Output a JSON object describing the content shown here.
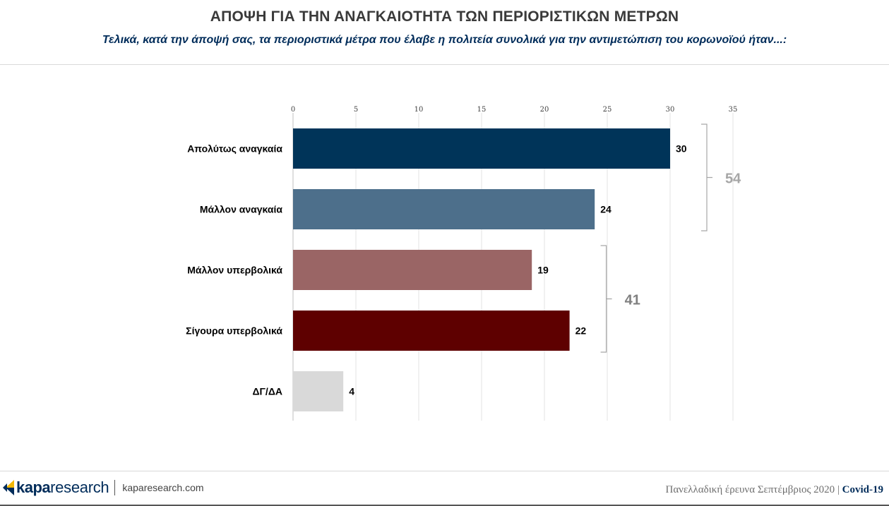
{
  "header": {
    "title": "ΑΠΟΨΗ ΓΙΑ ΤΗΝ ΑΝΑΓΚΑΙΟΤΗΤΑ ΤΩΝ ΠΕΡΙΟΡΙΣΤΙΚΩΝ ΜΕΤΡΩΝ",
    "subtitle": "Τελικά, κατά την άποψή σας, τα περιοριστικά μέτρα που έλαβε η πολιτεία συνολικά για την αντιμετώπιση του κορωνοϊού ήταν...:"
  },
  "chart_data": {
    "type": "bar",
    "orientation": "horizontal",
    "categories": [
      "Απολύτως αναγκαία",
      "Μάλλον αναγκαία",
      "Μάλλον υπερβολικά",
      "Σίγουρα υπερβολικά",
      "ΔΓ/ΔΑ"
    ],
    "values": [
      30,
      24,
      19,
      22,
      4
    ],
    "colors": [
      "#003459",
      "#4d6f8b",
      "#9a6565",
      "#5e0000",
      "#d9d9d9"
    ],
    "xlim": [
      0,
      35
    ],
    "x_ticks": [
      0,
      5,
      10,
      15,
      20,
      25,
      30,
      35
    ],
    "x_axis_position": "top",
    "grid": true,
    "groups": [
      {
        "start": 0,
        "end": 1,
        "total": "54",
        "color": "#a6a6a6"
      },
      {
        "start": 2,
        "end": 3,
        "total": "41",
        "color": "#808080"
      }
    ]
  },
  "footer": {
    "brand": "kapa",
    "brand_suffix": "research",
    "url": "kaparesearch.com",
    "survey": "Πανελλαδική έρευνα Σεπτέμβριος 2020",
    "separator": "|",
    "topic": "Covid-19"
  }
}
